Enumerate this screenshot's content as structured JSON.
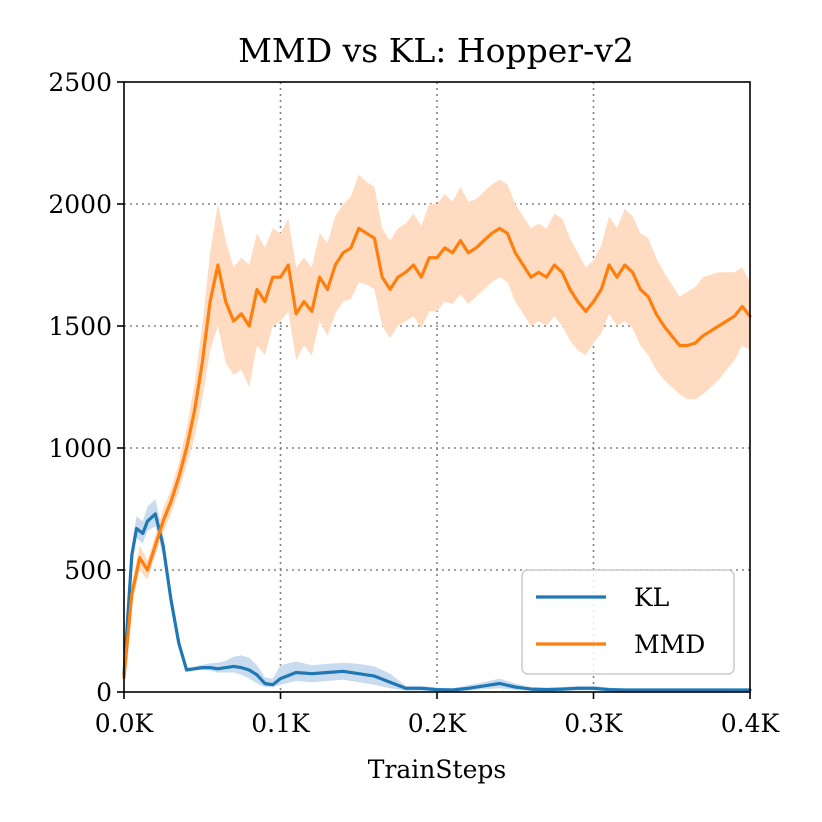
{
  "chart_data": {
    "type": "line",
    "title": "MMD vs KL: Hopper-v2",
    "xlabel": "TrainSteps",
    "ylabel": "",
    "xlim": [
      0,
      0.4
    ],
    "ylim": [
      0,
      2500
    ],
    "grid": true,
    "legend_position": "bottom-right",
    "x_ticks": [
      0,
      0.1,
      0.2,
      0.3,
      0.4
    ],
    "x_tick_labels": [
      "0.0K",
      "0.1K",
      "0.2K",
      "0.3K",
      "0.4K"
    ],
    "y_ticks": [
      0,
      500,
      1000,
      1500,
      2000,
      2500
    ],
    "y_tick_labels": [
      "0",
      "500",
      "1000",
      "1500",
      "2000",
      "2500"
    ],
    "series": [
      {
        "name": "KL",
        "color": "#1f77b4",
        "band_color": "#c9dcef",
        "x": [
          0,
          0.005,
          0.008,
          0.012,
          0.015,
          0.02,
          0.025,
          0.03,
          0.035,
          0.04,
          0.045,
          0.05,
          0.055,
          0.06,
          0.065,
          0.07,
          0.075,
          0.08,
          0.085,
          0.09,
          0.095,
          0.1,
          0.11,
          0.12,
          0.13,
          0.14,
          0.15,
          0.16,
          0.17,
          0.18,
          0.19,
          0.2,
          0.21,
          0.22,
          0.23,
          0.24,
          0.25,
          0.26,
          0.27,
          0.28,
          0.29,
          0.3,
          0.31,
          0.32,
          0.35,
          0.4
        ],
        "values": [
          70,
          560,
          670,
          650,
          700,
          730,
          600,
          380,
          200,
          90,
          95,
          100,
          100,
          95,
          100,
          105,
          100,
          90,
          70,
          35,
          30,
          55,
          80,
          75,
          80,
          85,
          75,
          65,
          40,
          15,
          15,
          10,
          8,
          15,
          25,
          35,
          20,
          12,
          10,
          12,
          15,
          15,
          10,
          8,
          8,
          8
        ],
        "lower": [
          60,
          520,
          630,
          610,
          660,
          680,
          560,
          350,
          180,
          85,
          88,
          90,
          88,
          80,
          80,
          80,
          70,
          55,
          35,
          20,
          20,
          30,
          45,
          40,
          45,
          50,
          40,
          30,
          15,
          5,
          5,
          3,
          2,
          5,
          12,
          15,
          8,
          5,
          4,
          5,
          6,
          6,
          4,
          3,
          3,
          3
        ],
        "upper": [
          80,
          600,
          720,
          700,
          760,
          790,
          650,
          420,
          230,
          100,
          105,
          112,
          118,
          120,
          128,
          145,
          150,
          140,
          110,
          60,
          55,
          110,
          125,
          110,
          115,
          120,
          115,
          105,
          75,
          25,
          25,
          18,
          15,
          28,
          40,
          55,
          35,
          20,
          18,
          20,
          25,
          25,
          18,
          14,
          14,
          14
        ]
      },
      {
        "name": "MMD",
        "color": "#ff7f0e",
        "band_color": "#ffdcc1",
        "x": [
          0,
          0.005,
          0.01,
          0.015,
          0.02,
          0.025,
          0.03,
          0.035,
          0.04,
          0.045,
          0.05,
          0.055,
          0.06,
          0.065,
          0.07,
          0.075,
          0.08,
          0.085,
          0.09,
          0.095,
          0.1,
          0.105,
          0.11,
          0.115,
          0.12,
          0.125,
          0.13,
          0.135,
          0.14,
          0.145,
          0.15,
          0.155,
          0.16,
          0.165,
          0.17,
          0.175,
          0.18,
          0.185,
          0.19,
          0.195,
          0.2,
          0.205,
          0.21,
          0.215,
          0.22,
          0.225,
          0.23,
          0.235,
          0.24,
          0.245,
          0.25,
          0.255,
          0.26,
          0.265,
          0.27,
          0.275,
          0.28,
          0.285,
          0.29,
          0.295,
          0.3,
          0.305,
          0.31,
          0.315,
          0.32,
          0.325,
          0.33,
          0.335,
          0.34,
          0.345,
          0.35,
          0.355,
          0.36,
          0.365,
          0.37,
          0.375,
          0.38,
          0.385,
          0.39,
          0.395,
          0.4
        ],
        "values": [
          60,
          400,
          550,
          500,
          600,
          700,
          780,
          880,
          1000,
          1150,
          1350,
          1600,
          1750,
          1600,
          1520,
          1550,
          1500,
          1650,
          1600,
          1700,
          1700,
          1750,
          1550,
          1600,
          1560,
          1700,
          1650,
          1750,
          1800,
          1820,
          1900,
          1880,
          1860,
          1700,
          1650,
          1700,
          1720,
          1750,
          1700,
          1780,
          1780,
          1820,
          1800,
          1850,
          1800,
          1820,
          1850,
          1880,
          1900,
          1880,
          1800,
          1750,
          1700,
          1720,
          1700,
          1750,
          1720,
          1650,
          1600,
          1560,
          1600,
          1650,
          1750,
          1700,
          1750,
          1720,
          1650,
          1620,
          1550,
          1500,
          1460,
          1420,
          1420,
          1430,
          1460,
          1480,
          1500,
          1520,
          1540,
          1580,
          1540
        ],
        "lower": [
          50,
          360,
          500,
          460,
          560,
          650,
          730,
          820,
          930,
          1040,
          1200,
          1400,
          1500,
          1350,
          1300,
          1320,
          1250,
          1420,
          1380,
          1500,
          1520,
          1560,
          1360,
          1420,
          1380,
          1520,
          1460,
          1550,
          1600,
          1610,
          1680,
          1670,
          1650,
          1500,
          1450,
          1500,
          1520,
          1540,
          1490,
          1560,
          1560,
          1600,
          1590,
          1630,
          1590,
          1620,
          1650,
          1680,
          1700,
          1680,
          1600,
          1550,
          1500,
          1520,
          1500,
          1540,
          1500,
          1440,
          1400,
          1380,
          1430,
          1470,
          1550,
          1500,
          1520,
          1490,
          1420,
          1380,
          1320,
          1280,
          1250,
          1220,
          1200,
          1200,
          1220,
          1250,
          1280,
          1320,
          1360,
          1420,
          1400
        ],
        "upper": [
          70,
          440,
          600,
          540,
          640,
          750,
          830,
          940,
          1080,
          1260,
          1500,
          1800,
          2000,
          1850,
          1740,
          1780,
          1750,
          1880,
          1820,
          1900,
          1880,
          1940,
          1740,
          1780,
          1740,
          1880,
          1840,
          1950,
          2000,
          2030,
          2120,
          2090,
          2070,
          1900,
          1850,
          1900,
          1920,
          1960,
          1910,
          2000,
          2000,
          2040,
          2010,
          2070,
          2010,
          2020,
          2050,
          2080,
          2100,
          2080,
          2000,
          1950,
          1900,
          1920,
          1900,
          1960,
          1940,
          1860,
          1800,
          1740,
          1770,
          1830,
          1950,
          1900,
          1980,
          1950,
          1880,
          1860,
          1780,
          1720,
          1670,
          1620,
          1640,
          1660,
          1700,
          1710,
          1720,
          1720,
          1720,
          1740,
          1680
        ]
      }
    ]
  }
}
